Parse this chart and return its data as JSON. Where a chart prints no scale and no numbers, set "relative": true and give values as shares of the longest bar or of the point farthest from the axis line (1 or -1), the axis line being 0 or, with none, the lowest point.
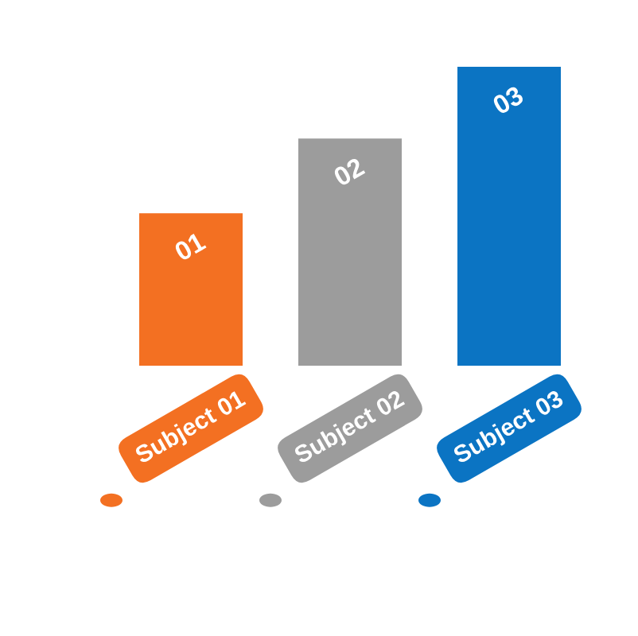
{
  "chart_data": {
    "type": "bar",
    "relative": true,
    "categories": [
      "Subject 01",
      "Subject 02",
      "Subject 03"
    ],
    "values": [
      0.51,
      0.76,
      1
    ],
    "colors": [
      "#f37022",
      "#9c9c9c",
      "#0b74c3"
    ],
    "annotations": [
      {
        "text": "01",
        "x": "Subject 01",
        "y": 0.51
      },
      {
        "text": "02",
        "x": "Subject 02",
        "y": 0.76
      },
      {
        "text": "03",
        "x": "Subject 03",
        "y": 1
      }
    ]
  }
}
